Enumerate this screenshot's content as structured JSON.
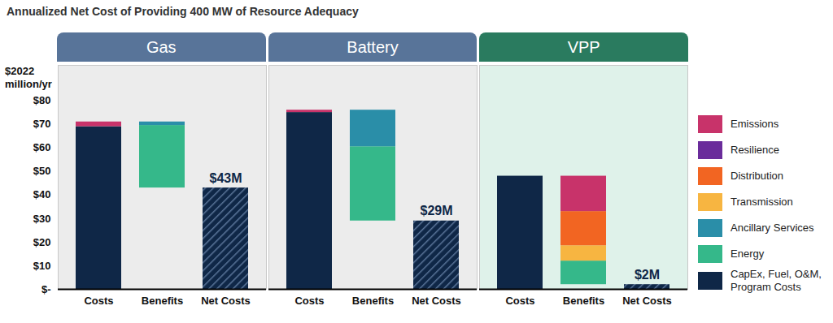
{
  "chart_data": {
    "type": "waterfall",
    "title": "Annualized Net Cost of Providing 400 MW of Resource Adequacy",
    "ylabel": "$2022 million/yr",
    "panels": [
      "Gas",
      "Battery",
      "VPP"
    ],
    "categories": [
      "Costs",
      "Benefits",
      "Net Costs"
    ],
    "series": [
      {
        "name": "Emissions",
        "color": "#c8336a",
        "costs": [
          2,
          1,
          0
        ],
        "benefits": [
          0,
          0,
          15
        ]
      },
      {
        "name": "Resilience",
        "color": "#6a2c9b",
        "costs": [
          0,
          0,
          0
        ],
        "benefits": [
          0,
          0,
          0
        ]
      },
      {
        "name": "Distribution",
        "color": "#f26522",
        "costs": [
          0,
          0,
          0
        ],
        "benefits": [
          0,
          0,
          14.5
        ]
      },
      {
        "name": "Transmission",
        "color": "#f7b541",
        "costs": [
          0,
          0,
          0
        ],
        "benefits": [
          0,
          0,
          6.5
        ]
      },
      {
        "name": "Ancillary Services",
        "color": "#2a8ea8",
        "costs": [
          0,
          0,
          0
        ],
        "benefits": [
          1.5,
          15.5,
          0
        ]
      },
      {
        "name": "Energy",
        "color": "#35b88a",
        "costs": [
          0,
          0,
          0
        ],
        "benefits": [
          26.5,
          31.5,
          10
        ]
      },
      {
        "name": "CapEx, Fuel, O&M, Program Costs",
        "color": "#0f2747",
        "costs": [
          69,
          75,
          48
        ],
        "benefits": [
          0,
          0,
          0
        ]
      }
    ],
    "net_costs": {
      "values": [
        43,
        29,
        2
      ],
      "value_labels": [
        "$43M",
        "$29M",
        "$2M"
      ]
    },
    "ylim": [
      0,
      95
    ],
    "yticks": [
      {
        "value": 0,
        "label": "$-"
      },
      {
        "value": 10,
        "label": "$10"
      },
      {
        "value": 20,
        "label": "$20"
      },
      {
        "value": 30,
        "label": "$30"
      },
      {
        "value": 40,
        "label": "$40"
      },
      {
        "value": 50,
        "label": "$50"
      },
      {
        "value": 60,
        "label": "$60"
      },
      {
        "value": 70,
        "label": "$70"
      },
      {
        "value": 80,
        "label": "$80"
      }
    ],
    "grid": false,
    "stacked": true,
    "data_labels": true,
    "legend": "right"
  }
}
